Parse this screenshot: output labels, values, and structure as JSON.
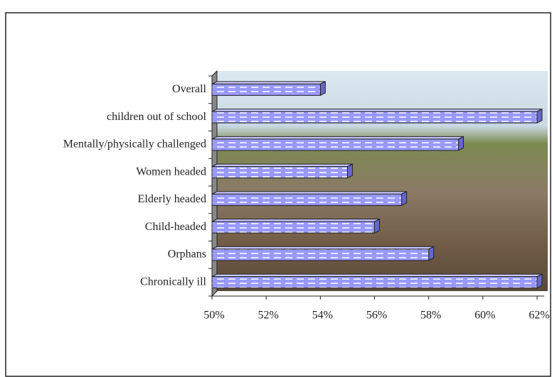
{
  "chart_data": {
    "type": "bar",
    "orientation": "horizontal",
    "categories": [
      "Overall",
      "children out of school",
      "Mentally/physically challenged",
      "Women headed",
      "Elderly headed",
      "Child-headed",
      "Orphans",
      "Chronically ill"
    ],
    "values": [
      54,
      62,
      59.1,
      55,
      57,
      56,
      58,
      62
    ],
    "color": "#9999ff",
    "xlim": [
      50,
      62
    ],
    "xticks": [
      {
        "value": 50,
        "label": "50%"
      },
      {
        "value": 52,
        "label": "52%"
      },
      {
        "value": 54,
        "label": "54%"
      },
      {
        "value": 56,
        "label": "56%"
      },
      {
        "value": 58,
        "label": "58%"
      },
      {
        "value": 60,
        "label": "60%"
      },
      {
        "value": 62,
        "label": "62%"
      }
    ]
  }
}
